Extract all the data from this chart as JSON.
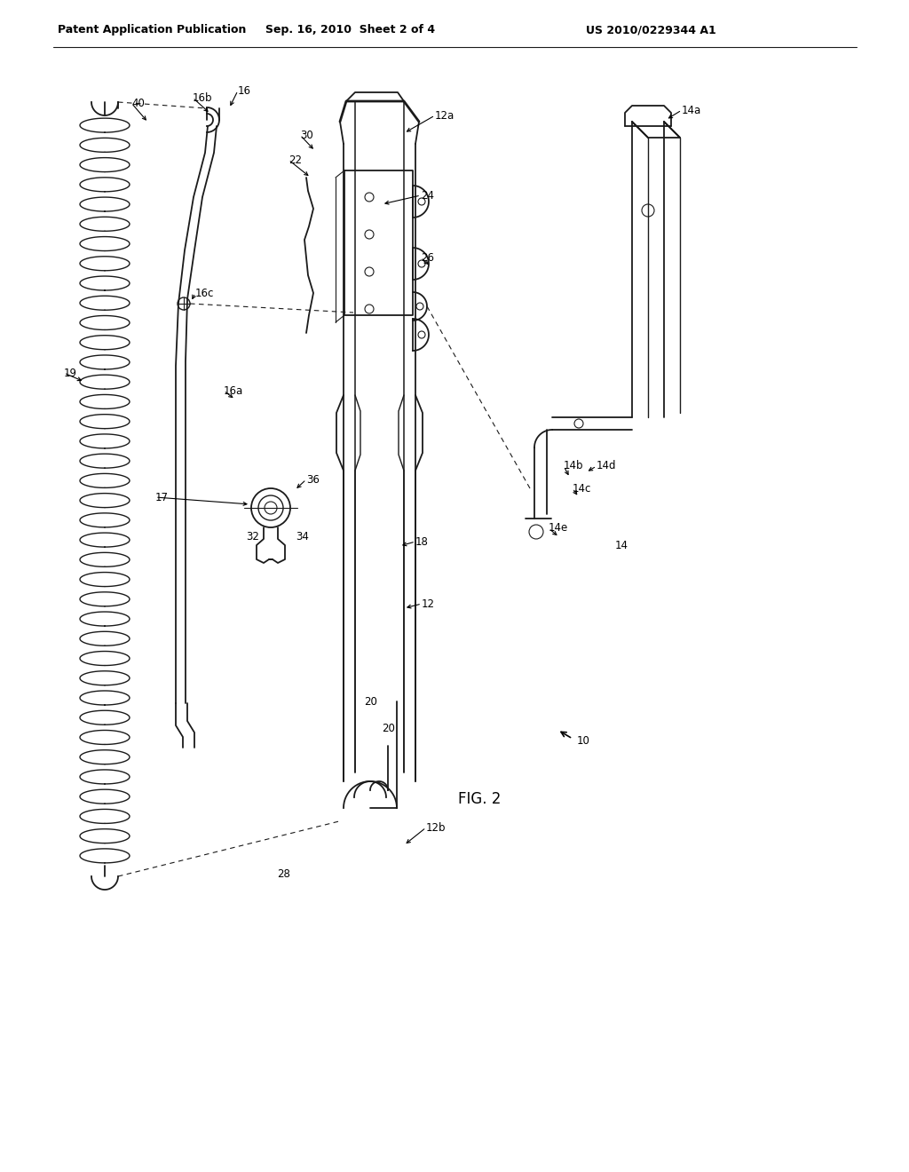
{
  "bg_color": "#ffffff",
  "lc": "#1a1a1a",
  "header_left": "Patent Application Publication",
  "header_center": "Sep. 16, 2010  Sheet 2 of 4",
  "header_right": "US 2010/0229344 A1",
  "hfs": 9,
  "lfs": 8.5
}
